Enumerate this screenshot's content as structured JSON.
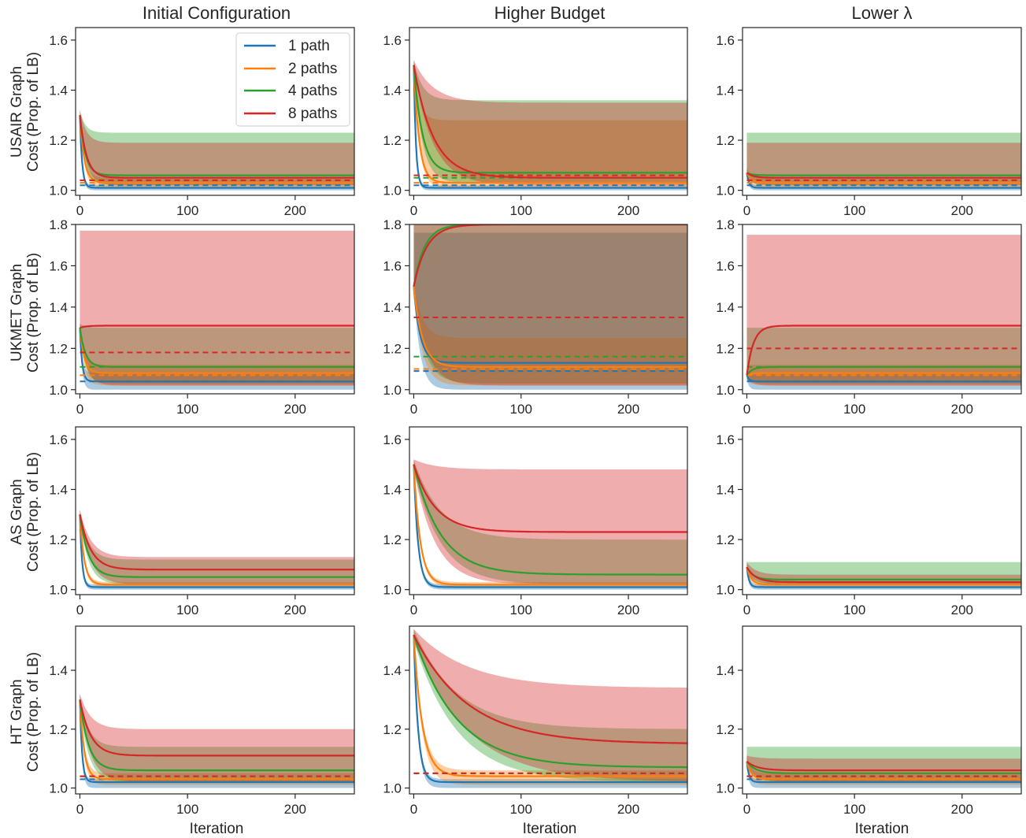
{
  "figure": {
    "col_titles": [
      "Initial Configuration",
      "Higher Budget",
      "Lower λ"
    ],
    "row_labels": [
      [
        "USAIR Graph",
        "Cost (Prop. of LB)"
      ],
      [
        "UKMET Graph",
        "Cost (Prop. of LB)"
      ],
      [
        "AS Graph",
        "Cost (Prop. of LB)"
      ],
      [
        "HT Graph",
        "Cost (Prop. of LB)"
      ]
    ],
    "xlabel": "Iteration",
    "legend": [
      {
        "label": "1 path",
        "color": "#1f77b4"
      },
      {
        "label": "2 paths",
        "color": "#ff7f0e"
      },
      {
        "label": "4 paths",
        "color": "#2ca02c"
      },
      {
        "label": "8 paths",
        "color": "#d62728"
      }
    ]
  },
  "chart_data": {
    "type": "line",
    "x_range": [
      -4,
      255
    ],
    "x_ticks": [
      0,
      100,
      200
    ],
    "x_tick_labels": [
      "0",
      "100",
      "200"
    ],
    "legend_position": "upper-right of first panel",
    "grid": false,
    "series_names": [
      "1 path",
      "2 paths",
      "4 paths",
      "8 paths"
    ],
    "series_colors": [
      "#1f77b4",
      "#ff7f0e",
      "#2ca02c",
      "#d62728"
    ],
    "rows": [
      {
        "name": "USAIR Graph",
        "ylim": [
          0.98,
          1.65
        ],
        "y_ticks": [
          1.0,
          1.2,
          1.4,
          1.6
        ],
        "y_tick_labels": [
          "1.0",
          "1.2",
          "1.4",
          "1.6"
        ]
      },
      {
        "name": "UKMET Graph",
        "ylim": [
          0.98,
          1.8
        ],
        "y_ticks": [
          1.0,
          1.2,
          1.4,
          1.6,
          1.8
        ],
        "y_tick_labels": [
          "1.0",
          "1.2",
          "1.4",
          "1.6",
          "1.8"
        ]
      },
      {
        "name": "AS Graph",
        "ylim": [
          0.98,
          1.65
        ],
        "y_ticks": [
          1.0,
          1.2,
          1.4,
          1.6
        ],
        "y_tick_labels": [
          "1.0",
          "1.2",
          "1.4",
          "1.6"
        ]
      },
      {
        "name": "HT Graph",
        "ylim": [
          0.98,
          1.55
        ],
        "y_ticks": [
          1.0,
          1.2,
          1.4
        ],
        "y_tick_labels": [
          "1.0",
          "1.2",
          "1.4"
        ]
      }
    ],
    "panels": [
      {
        "row": 0,
        "col": 0,
        "series": [
          {
            "name": "1 path",
            "start": 1.3,
            "final": 1.01,
            "decay": 2,
            "band_low": 1.0,
            "band_high": 1.02,
            "dashed": 1.02
          },
          {
            "name": "2 paths",
            "start": 1.3,
            "final": 1.03,
            "decay": 4,
            "band_low": 1.01,
            "band_high": 1.05,
            "dashed": 1.03
          },
          {
            "name": "4 paths",
            "start": 1.3,
            "final": 1.06,
            "decay": 5,
            "band_low": 1.02,
            "band_high": 1.23,
            "dashed": 1.04
          },
          {
            "name": "8 paths",
            "start": 1.3,
            "final": 1.05,
            "decay": 6,
            "band_low": 1.02,
            "band_high": 1.19,
            "dashed": 1.04
          }
        ]
      },
      {
        "row": 0,
        "col": 1,
        "series": [
          {
            "name": "1 path",
            "start": 1.5,
            "final": 1.01,
            "decay": 2,
            "band_low": 1.0,
            "band_high": 1.02,
            "dashed": 1.02
          },
          {
            "name": "2 paths",
            "start": 1.5,
            "final": 1.03,
            "decay": 5,
            "band_low": 1.01,
            "band_high": 1.28,
            "dashed": 1.03
          },
          {
            "name": "4 paths",
            "start": 1.5,
            "final": 1.07,
            "decay": 8,
            "band_low": 1.03,
            "band_high": 1.36,
            "dashed": 1.05
          },
          {
            "name": "8 paths",
            "start": 1.5,
            "final": 1.05,
            "decay": 18,
            "band_low": 1.02,
            "band_high": 1.35,
            "dashed": 1.06
          }
        ]
      },
      {
        "row": 0,
        "col": 2,
        "series": [
          {
            "name": "1 path",
            "start": 1.07,
            "final": 1.01,
            "decay": 2,
            "band_low": 1.0,
            "band_high": 1.02,
            "dashed": 1.02
          },
          {
            "name": "2 paths",
            "start": 1.07,
            "final": 1.03,
            "decay": 4,
            "band_low": 1.01,
            "band_high": 1.05,
            "dashed": 1.03
          },
          {
            "name": "4 paths",
            "start": 1.07,
            "final": 1.06,
            "decay": 5,
            "band_low": 1.02,
            "band_high": 1.23,
            "dashed": 1.04
          },
          {
            "name": "8 paths",
            "start": 1.07,
            "final": 1.05,
            "decay": 6,
            "band_low": 1.02,
            "band_high": 1.19,
            "dashed": 1.04
          }
        ]
      },
      {
        "row": 1,
        "col": 0,
        "series": [
          {
            "name": "1 path",
            "start": 1.3,
            "final": 1.04,
            "decay": 2,
            "band_low": 1.0,
            "band_high": 1.08,
            "dashed": 1.04
          },
          {
            "name": "2 paths",
            "start": 1.3,
            "final": 1.08,
            "decay": 4,
            "band_low": 1.02,
            "band_high": 1.12,
            "dashed": 1.07
          },
          {
            "name": "4 paths",
            "start": 1.3,
            "final": 1.11,
            "decay": 5,
            "band_low": 1.03,
            "band_high": 1.3,
            "dashed": 1.11
          },
          {
            "name": "8 paths",
            "start": 1.3,
            "final": 1.31,
            "decay": 6,
            "band_low": 1.02,
            "band_high": 1.77,
            "dashed": 1.18
          }
        ]
      },
      {
        "row": 1,
        "col": 1,
        "series": [
          {
            "name": "1 path",
            "start": 1.5,
            "final": 1.13,
            "decay": 6,
            "band_low": 1.0,
            "band_high": 1.76,
            "dashed": 1.09
          },
          {
            "name": "2 paths",
            "start": 1.5,
            "final": 1.11,
            "decay": 8,
            "band_low": 1.02,
            "band_high": 1.25,
            "dashed": 1.1
          },
          {
            "name": "4 paths",
            "start": 1.5,
            "final": 1.8,
            "decay": 10,
            "band_low": 1.03,
            "band_high": 1.8,
            "dashed": 1.16
          },
          {
            "name": "8 paths",
            "start": 1.5,
            "final": 1.8,
            "decay": 12,
            "band_low": 1.02,
            "band_high": 1.8,
            "dashed": 1.35
          }
        ]
      },
      {
        "row": 1,
        "col": 2,
        "series": [
          {
            "name": "1 path",
            "start": 1.07,
            "final": 1.04,
            "decay": 2,
            "band_low": 1.0,
            "band_high": 1.08,
            "dashed": 1.04
          },
          {
            "name": "2 paths",
            "start": 1.07,
            "final": 1.08,
            "decay": 4,
            "band_low": 1.02,
            "band_high": 1.12,
            "dashed": 1.07
          },
          {
            "name": "4 paths",
            "start": 1.07,
            "final": 1.11,
            "decay": 5,
            "band_low": 1.03,
            "band_high": 1.3,
            "dashed": 1.11
          },
          {
            "name": "8 paths",
            "start": 1.07,
            "final": 1.31,
            "decay": 6,
            "band_low": 1.02,
            "band_high": 1.75,
            "dashed": 1.2
          }
        ]
      },
      {
        "row": 2,
        "col": 0,
        "series": [
          {
            "name": "1 path",
            "start": 1.3,
            "final": 1.01,
            "decay": 2,
            "band_low": 1.0,
            "band_high": 1.02
          },
          {
            "name": "2 paths",
            "start": 1.3,
            "final": 1.02,
            "decay": 4,
            "band_low": 1.01,
            "band_high": 1.03
          },
          {
            "name": "4 paths",
            "start": 1.3,
            "final": 1.05,
            "decay": 8,
            "band_low": 1.02,
            "band_high": 1.12
          },
          {
            "name": "8 paths",
            "start": 1.3,
            "final": 1.08,
            "decay": 10,
            "band_low": 1.02,
            "band_high": 1.13
          }
        ]
      },
      {
        "row": 2,
        "col": 1,
        "series": [
          {
            "name": "1 path",
            "start": 1.5,
            "final": 1.01,
            "decay": 4,
            "band_low": 1.0,
            "band_high": 1.02
          },
          {
            "name": "2 paths",
            "start": 1.5,
            "final": 1.02,
            "decay": 6,
            "band_low": 1.01,
            "band_high": 1.03
          },
          {
            "name": "4 paths",
            "start": 1.5,
            "final": 1.06,
            "decay": 25,
            "band_low": 1.02,
            "band_high": 1.2
          },
          {
            "name": "8 paths",
            "start": 1.5,
            "final": 1.23,
            "decay": 20,
            "band_low": 1.02,
            "band_high": 1.48
          }
        ]
      },
      {
        "row": 2,
        "col": 2,
        "series": [
          {
            "name": "1 path",
            "start": 1.09,
            "final": 1.01,
            "decay": 2,
            "band_low": 1.0,
            "band_high": 1.02
          },
          {
            "name": "2 paths",
            "start": 1.09,
            "final": 1.02,
            "decay": 4,
            "band_low": 1.01,
            "band_high": 1.03
          },
          {
            "name": "4 paths",
            "start": 1.09,
            "final": 1.04,
            "decay": 6,
            "band_low": 1.02,
            "band_high": 1.11
          },
          {
            "name": "8 paths",
            "start": 1.09,
            "final": 1.03,
            "decay": 8,
            "band_low": 1.02,
            "band_high": 1.06
          }
        ]
      },
      {
        "row": 3,
        "col": 0,
        "series": [
          {
            "name": "1 path",
            "start": 1.3,
            "final": 1.02,
            "decay": 2,
            "band_low": 1.0,
            "band_high": 1.03,
            "dashed": 1.03
          },
          {
            "name": "2 paths",
            "start": 1.3,
            "final": 1.03,
            "decay": 4,
            "band_low": 1.01,
            "band_high": 1.05,
            "dashed": 1.04
          },
          {
            "name": "4 paths",
            "start": 1.3,
            "final": 1.06,
            "decay": 8,
            "band_low": 1.02,
            "band_high": 1.14,
            "dashed": 1.04
          },
          {
            "name": "8 paths",
            "start": 1.3,
            "final": 1.11,
            "decay": 10,
            "band_low": 1.02,
            "band_high": 1.2,
            "dashed": 1.04
          }
        ]
      },
      {
        "row": 3,
        "col": 1,
        "series": [
          {
            "name": "1 path",
            "start": 1.52,
            "final": 1.02,
            "decay": 4,
            "band_low": 1.0,
            "band_high": 1.03,
            "dashed": 1.05
          },
          {
            "name": "2 paths",
            "start": 1.52,
            "final": 1.04,
            "decay": 8,
            "band_low": 1.01,
            "band_high": 1.06,
            "dashed": 1.05
          },
          {
            "name": "4 paths",
            "start": 1.52,
            "final": 1.07,
            "decay": 40,
            "band_low": 1.02,
            "band_high": 1.2,
            "dashed": 1.05
          },
          {
            "name": "8 paths",
            "start": 1.52,
            "final": 1.15,
            "decay": 50,
            "band_low": 1.02,
            "band_high": 1.34,
            "dashed": 1.05
          }
        ]
      },
      {
        "row": 3,
        "col": 2,
        "series": [
          {
            "name": "1 path",
            "start": 1.09,
            "final": 1.02,
            "decay": 2,
            "band_low": 1.0,
            "band_high": 1.03,
            "dashed": 1.03
          },
          {
            "name": "2 paths",
            "start": 1.09,
            "final": 1.03,
            "decay": 4,
            "band_low": 1.01,
            "band_high": 1.05,
            "dashed": 1.04
          },
          {
            "name": "4 paths",
            "start": 1.09,
            "final": 1.05,
            "decay": 8,
            "band_low": 1.02,
            "band_high": 1.14,
            "dashed": 1.04
          },
          {
            "name": "8 paths",
            "start": 1.09,
            "final": 1.06,
            "decay": 10,
            "band_low": 1.02,
            "band_high": 1.1,
            "dashed": 1.04
          }
        ]
      }
    ]
  }
}
